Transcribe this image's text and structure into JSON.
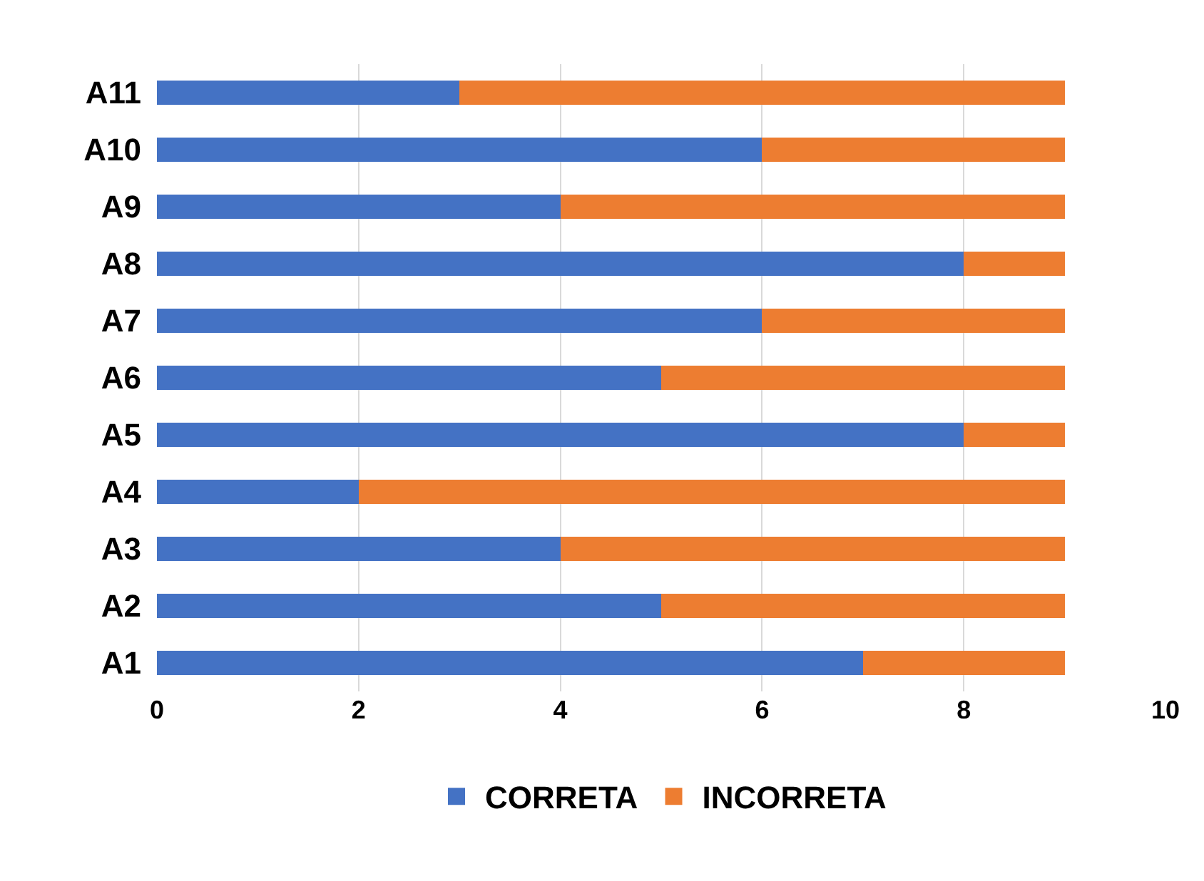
{
  "chart_data": {
    "type": "bar",
    "orientation": "horizontal",
    "stacked": true,
    "categories": [
      "A11",
      "A10",
      "A9",
      "A8",
      "A7",
      "A6",
      "A5",
      "A4",
      "A3",
      "A2",
      "A1"
    ],
    "series": [
      {
        "name": "CORRETA",
        "color": "#4472c4",
        "values": [
          3,
          6,
          4,
          8,
          6,
          5,
          8,
          2,
          4,
          5,
          7
        ]
      },
      {
        "name": "INCORRETA",
        "color": "#ed7d31",
        "values": [
          6,
          3,
          5,
          1,
          3,
          4,
          1,
          7,
          5,
          4,
          2
        ]
      }
    ],
    "xlim": [
      0,
      10
    ],
    "xticks": [
      0,
      2,
      4,
      6,
      8,
      10
    ],
    "grid": "x",
    "legend": "bottom"
  }
}
